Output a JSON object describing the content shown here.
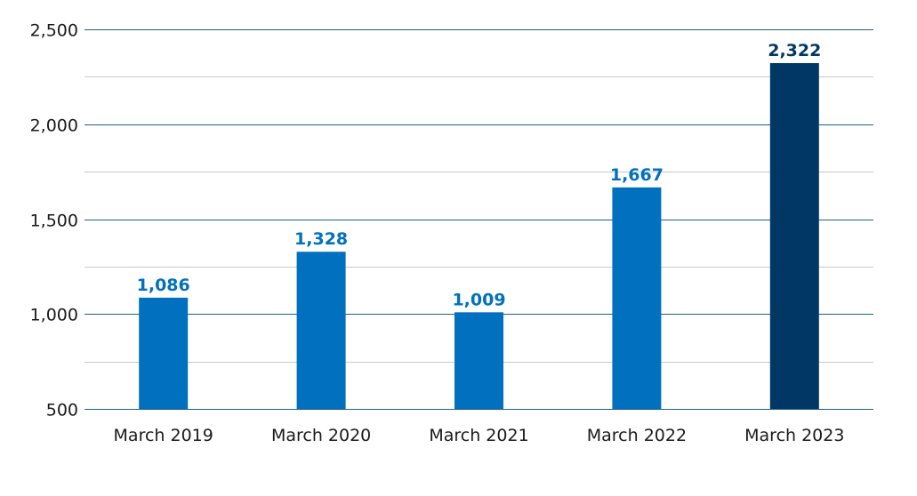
{
  "chart_data": {
    "type": "bar",
    "categories": [
      "March 2019",
      "March 2020",
      "March 2021",
      "March 2022",
      "March 2023"
    ],
    "values": [
      1086,
      1328,
      1009,
      1667,
      2322
    ],
    "value_labels": [
      "1,086",
      "1,328",
      "1,009",
      "1,667",
      "2,322"
    ],
    "title": "",
    "xlabel": "",
    "ylabel": "",
    "ylim": [
      500,
      2500
    ],
    "yticks": [
      500,
      1000,
      1500,
      2000,
      2500
    ],
    "ytick_labels": [
      "500",
      "1,000",
      "1,500",
      "2,000",
      "2,500"
    ],
    "grid": true,
    "colors": {
      "bar": "#0070bf",
      "bar_highlight": "#003764",
      "label": "#0070bf",
      "label_highlight": "#003764",
      "major_grid": "#1f5f8f",
      "minor_grid": "#c8c8c8"
    },
    "highlight_index": 4
  }
}
